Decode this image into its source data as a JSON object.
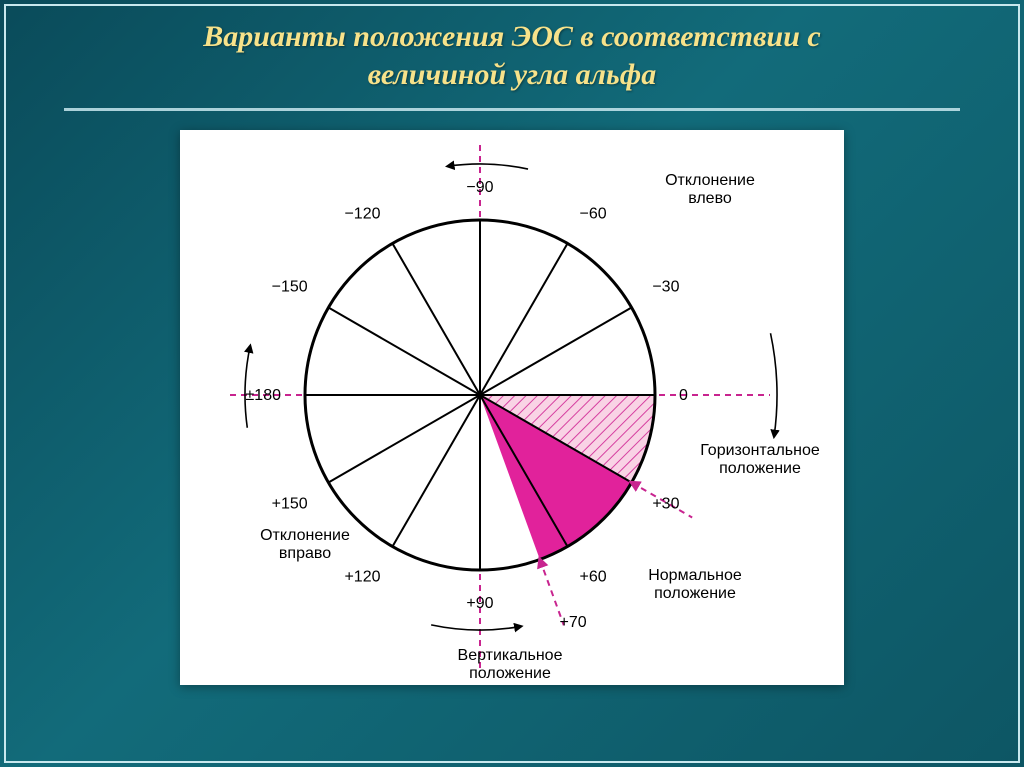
{
  "title_line1": "Варианты положения ЭОС в соответствии с",
  "title_line2": "величиной угла альфа",
  "diagram": {
    "type": "polar-diagram",
    "background_color": "#ffffff",
    "circle_stroke": "#000000",
    "circle_stroke_width": 3,
    "diameter_line_color": "#000000",
    "diameter_line_width": 2,
    "dashed_axis_color": "#c8248f",
    "dashed_axis_width": 2,
    "dashed_axis_dash": "6 5",
    "sector_hatch": {
      "start_deg": 0,
      "end_deg": 30,
      "fill": "#f9d3e5",
      "hatch_color": "#d63fa0"
    },
    "sector_solid": {
      "start_deg": 30,
      "end_deg": 70,
      "fill": "#e1229b"
    },
    "angle_ticks": [
      {
        "deg": -90,
        "label": "−90"
      },
      {
        "deg": -120,
        "label": "−120"
      },
      {
        "deg": -150,
        "label": "−150"
      },
      {
        "deg": 180,
        "label": "±180"
      },
      {
        "deg": 150,
        "label": "+150"
      },
      {
        "deg": 120,
        "label": "+120"
      },
      {
        "deg": 90,
        "label": "+90"
      },
      {
        "deg": 60,
        "label": "+60"
      },
      {
        "deg": -60,
        "label": "−60"
      },
      {
        "deg": -30,
        "label": "−30"
      },
      {
        "deg": 0,
        "label": "0"
      },
      {
        "deg": 30,
        "label": "+30"
      }
    ],
    "extra_tick70": "+70",
    "label_font_size": 16,
    "label_font_family": "Arial, sans-serif",
    "label_color": "#000000",
    "annotations": {
      "left_deviation": "Отклонение\nвлево",
      "right_deviation": "Отклонение\nвправо",
      "horizontal_pos": "Горизонтальное\nположение",
      "normal_pos": "Нормальное\nположение",
      "vertical_pos": "Вертикальное\nположение"
    },
    "arrow_arc_color": "#000000",
    "arrow_arc_width": 1.6
  },
  "slide_colors": {
    "bg_gradient_from": "#0a4b5a",
    "bg_gradient_to": "#0d5664",
    "title_color": "#f7e28a",
    "rule_color": "#c8e8ee"
  }
}
